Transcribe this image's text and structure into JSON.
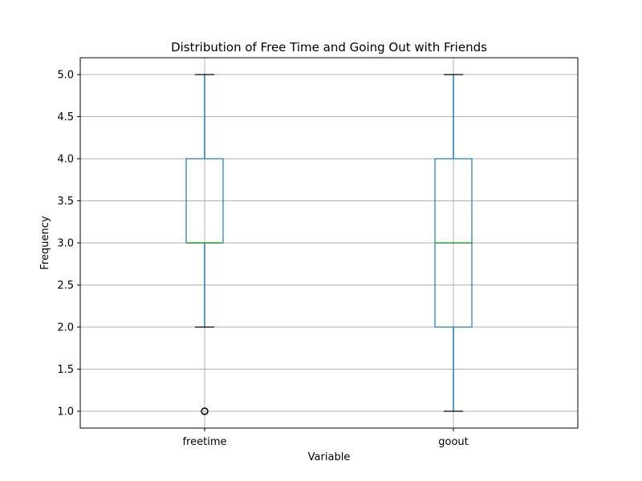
{
  "chart_data": {
    "type": "box",
    "title": "Distribution of Free Time and Going Out with Friends",
    "xlabel": "Variable",
    "ylabel": "Frequency",
    "ylim": [
      0.8,
      5.2
    ],
    "yticks": [
      1.0,
      1.5,
      2.0,
      2.5,
      3.0,
      3.5,
      4.0,
      4.5,
      5.0
    ],
    "ytick_labels": [
      "1.0",
      "1.5",
      "2.0",
      "2.5",
      "3.0",
      "3.5",
      "4.0",
      "4.5",
      "5.0"
    ],
    "grid": true,
    "categories": [
      "freetime",
      "goout"
    ],
    "boxes": [
      {
        "name": "freetime",
        "whisker_low": 2.0,
        "q1": 3.0,
        "median": 3.0,
        "q3": 4.0,
        "whisker_high": 5.0,
        "outliers": [
          1.0
        ]
      },
      {
        "name": "goout",
        "whisker_low": 1.0,
        "q1": 2.0,
        "median": 3.0,
        "q3": 4.0,
        "whisker_high": 5.0,
        "outliers": []
      }
    ],
    "colors": {
      "box": "#1f77b4",
      "median": "#2ca02c",
      "whisker": "#1f77b4",
      "cap": "#000000",
      "grid": "#b0b0b0",
      "outlier": "#000000"
    }
  }
}
